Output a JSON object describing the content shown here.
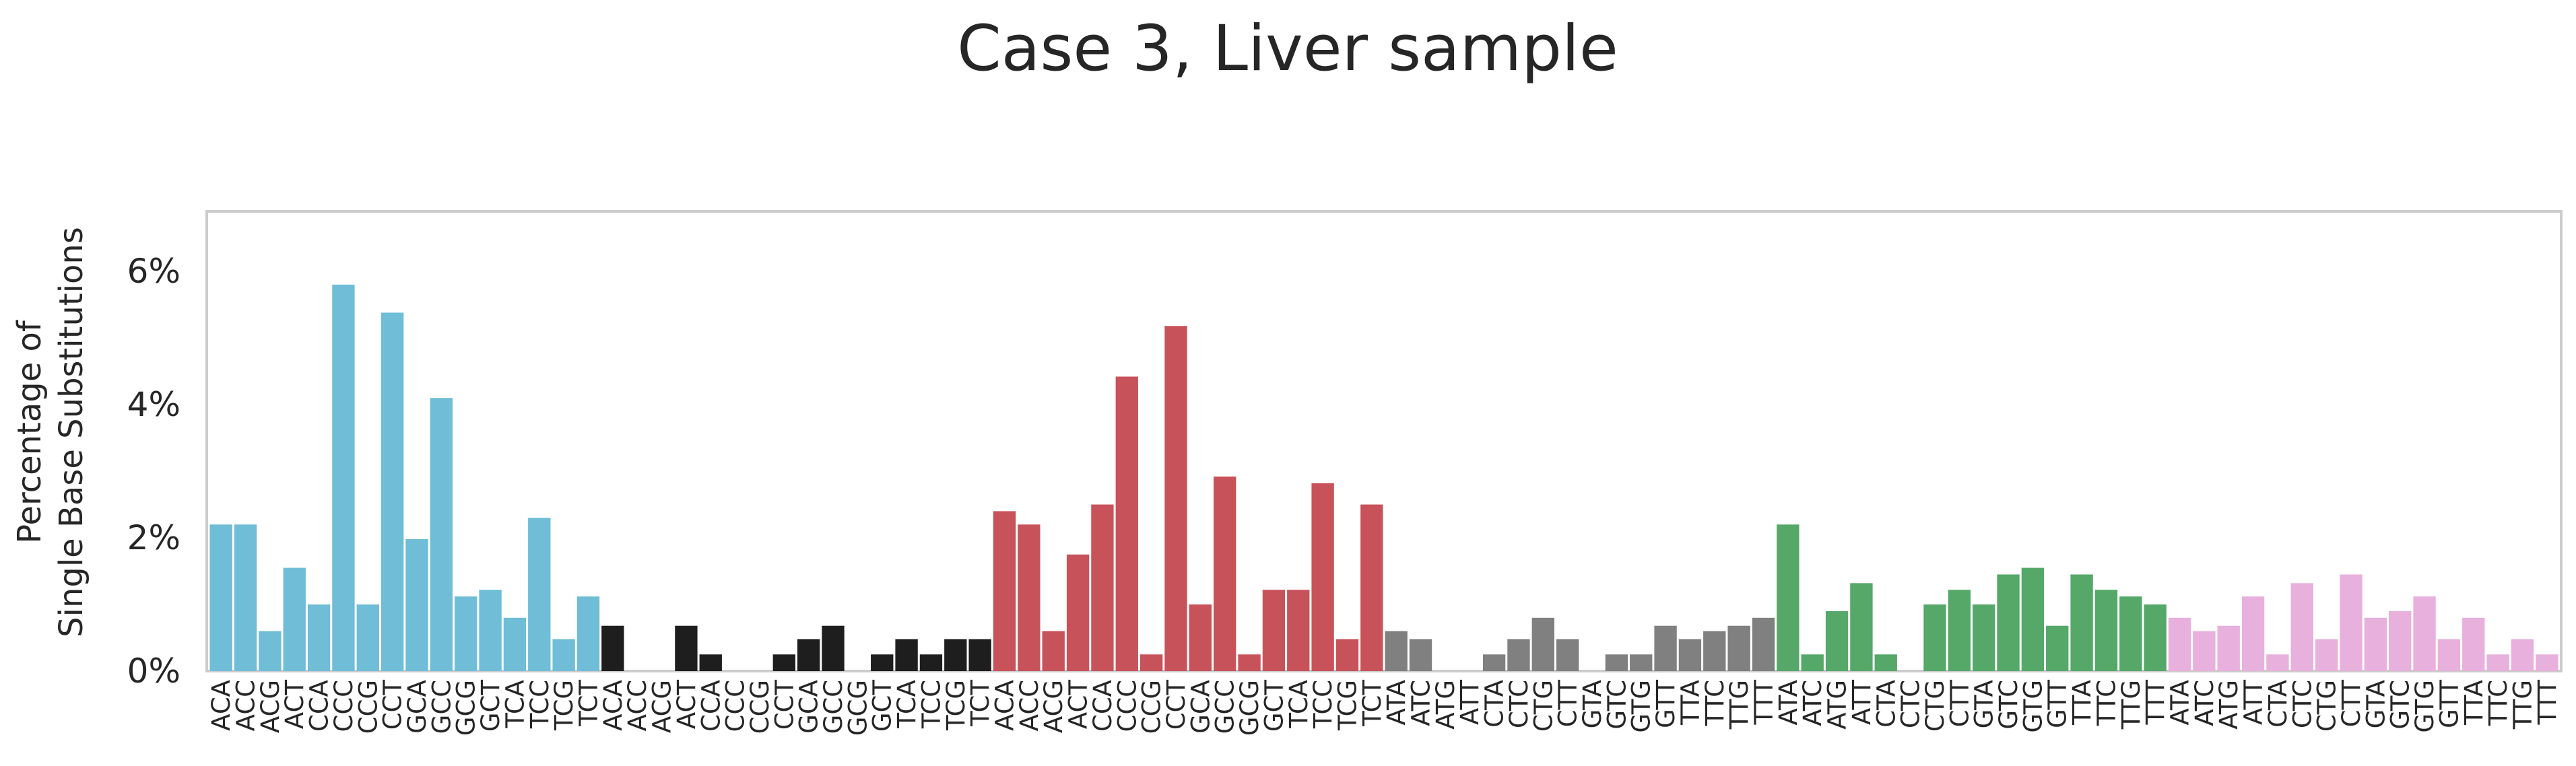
{
  "chart_data": {
    "type": "bar",
    "title": "Case 3, Liver sample",
    "xlabel": "",
    "ylabel_lines": [
      "Percentage of",
      "Single Base Substitutions"
    ],
    "ylim": [
      0,
      6.9
    ],
    "y_ticks": [
      {
        "value": 0,
        "label": "0%"
      },
      {
        "value": 2,
        "label": "2%"
      },
      {
        "value": 4,
        "label": "4%"
      },
      {
        "value": 6,
        "label": "6%"
      }
    ],
    "grid": false,
    "legend": "none",
    "categories": [
      "ACA",
      "ACC",
      "ACG",
      "ACT",
      "CCA",
      "CCC",
      "CCG",
      "CCT",
      "GCA",
      "GCC",
      "GCG",
      "GCT",
      "TCA",
      "TCC",
      "TCG",
      "TCT",
      "ACA",
      "ACC",
      "ACG",
      "ACT",
      "CCA",
      "CCC",
      "CCG",
      "CCT",
      "GCA",
      "GCC",
      "GCG",
      "GCT",
      "TCA",
      "TCC",
      "TCG",
      "TCT",
      "ACA",
      "ACC",
      "ACG",
      "ACT",
      "CCA",
      "CCC",
      "CCG",
      "CCT",
      "GCA",
      "GCC",
      "GCG",
      "GCT",
      "TCA",
      "TCC",
      "TCG",
      "TCT",
      "ATA",
      "ATC",
      "ATG",
      "ATT",
      "CTA",
      "CTC",
      "CTG",
      "CTT",
      "GTA",
      "GTC",
      "GTG",
      "GTT",
      "TTA",
      "TTC",
      "TTG",
      "TTT",
      "ATA",
      "ATC",
      "ATG",
      "ATT",
      "CTA",
      "CTC",
      "CTG",
      "CTT",
      "GTA",
      "GTC",
      "GTG",
      "GTT",
      "TTA",
      "TTC",
      "TTG",
      "TTT",
      "ATA",
      "ATC",
      "ATG",
      "ATT",
      "CTA",
      "CTC",
      "CTG",
      "CTT",
      "GTA",
      "GTC",
      "GTG",
      "GTT",
      "TTA",
      "TTC",
      "TTG",
      "TTT"
    ],
    "values": [
      2.2,
      2.2,
      0.6,
      1.55,
      1.0,
      5.8,
      1.0,
      5.38,
      1.98,
      4.1,
      1.12,
      1.22,
      0.8,
      2.3,
      0.48,
      1.12,
      0.68,
      0,
      0,
      0.68,
      0.25,
      0,
      0,
      0.25,
      0.48,
      0.68,
      0,
      0.25,
      0.48,
      0.25,
      0.48,
      0.48,
      2.4,
      2.2,
      0.6,
      1.75,
      2.5,
      4.42,
      0.25,
      5.18,
      1.0,
      2.92,
      0.25,
      1.22,
      1.22,
      2.82,
      0.48,
      2.5,
      0.6,
      0.48,
      0,
      0,
      0.25,
      0.48,
      0.8,
      0.48,
      0,
      0.25,
      0.25,
      0.68,
      0.48,
      0.6,
      0.68,
      0.8,
      2.2,
      0.25,
      0.9,
      1.32,
      0.25,
      0,
      1.0,
      1.22,
      1.0,
      1.45,
      1.55,
      0.68,
      1.45,
      1.22,
      1.12,
      1.0,
      0.8,
      0.6,
      0.68,
      1.12,
      0.25,
      1.32,
      0.48,
      1.45,
      0.8,
      0.9,
      1.12,
      0.48,
      0.8,
      0.25,
      0.48,
      0.25
    ],
    "group_colors": [
      "#6fbdd6",
      "#1e1e1e",
      "#c8525a",
      "#808080",
      "#55a868",
      "#e8b0dc"
    ],
    "group_size": 16
  }
}
